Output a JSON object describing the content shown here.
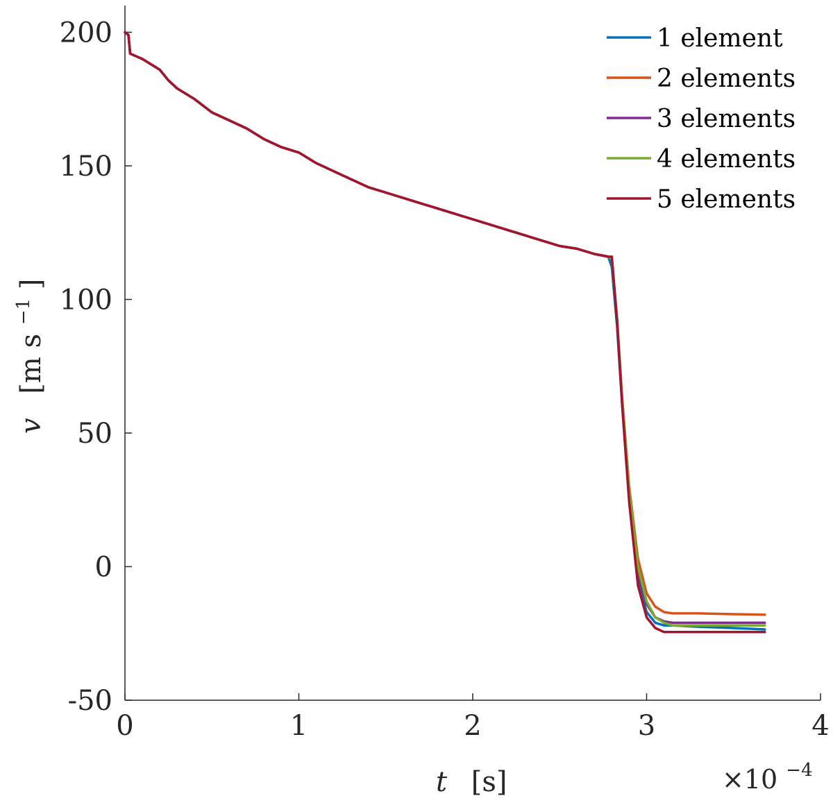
{
  "chart_data": {
    "type": "line",
    "xlabel": {
      "symbol": "t",
      "unit": "[s]"
    },
    "ylabel": {
      "symbol": "v",
      "unit_prefix": "[m s",
      "unit_exp": "−1",
      "unit_suffix": "]"
    },
    "x_multiplier": {
      "prefix": "×10",
      "exponent": "−4"
    },
    "xlim": [
      0,
      4
    ],
    "ylim": [
      -50,
      210
    ],
    "xticks": [
      0,
      1,
      2,
      3,
      4
    ],
    "xtick_labels": [
      "0",
      "1",
      "2",
      "3",
      "4"
    ],
    "yticks": [
      -50,
      0,
      50,
      100,
      150,
      200
    ],
    "ytick_labels": [
      "-50",
      "0",
      "50",
      "100",
      "150",
      "200"
    ],
    "grid": false,
    "legend_position": "top-right",
    "shared_curve": {
      "x": [
        0,
        0.02,
        0.03,
        0.1,
        0.2,
        0.25,
        0.3,
        0.4,
        0.5,
        0.6,
        0.7,
        0.8,
        0.9,
        1.0,
        1.1,
        1.2,
        1.3,
        1.4,
        1.5,
        1.6,
        1.7,
        1.8,
        1.9,
        2.0,
        2.1,
        2.2,
        2.3,
        2.4,
        2.5,
        2.6,
        2.7,
        2.78
      ],
      "y": [
        200,
        199,
        192,
        190,
        186,
        182,
        179,
        175,
        170,
        167,
        164,
        160,
        157,
        155,
        151,
        148,
        145,
        142,
        140,
        138,
        136,
        134,
        132,
        130,
        128,
        126,
        124,
        122,
        120,
        119,
        117,
        116
      ]
    },
    "series": [
      {
        "name": "1 element",
        "color": "#0072BD",
        "drop": {
          "x": [
            2.8,
            2.83,
            2.86,
            2.9,
            2.95,
            3.0,
            3.05,
            3.1,
            3.15,
            3.3,
            3.5,
            3.68
          ],
          "y": [
            112,
            90,
            60,
            25,
            -5,
            -17,
            -21,
            -22,
            -22,
            -22.5,
            -23,
            -23.5
          ]
        }
      },
      {
        "name": "2 elements",
        "color": "#D95319",
        "drop": {
          "x": [
            2.8,
            2.83,
            2.86,
            2.9,
            2.95,
            3.0,
            3.05,
            3.1,
            3.15,
            3.3,
            3.5,
            3.68
          ],
          "y": [
            115,
            93,
            63,
            30,
            3,
            -10,
            -15,
            -17,
            -17.5,
            -17.5,
            -17.8,
            -18
          ]
        }
      },
      {
        "name": "3 elements",
        "color": "#7E2F8E",
        "drop": {
          "x": [
            2.8,
            2.83,
            2.86,
            2.9,
            2.95,
            3.0,
            3.05,
            3.1,
            3.15,
            3.3,
            3.5,
            3.68
          ],
          "y": [
            115,
            92,
            61,
            27,
            -3,
            -14,
            -19,
            -20.5,
            -21,
            -21,
            -21,
            -21
          ]
        }
      },
      {
        "name": "4 elements",
        "color": "#77AC30",
        "drop": {
          "x": [
            2.8,
            2.83,
            2.86,
            2.9,
            2.95,
            3.0,
            3.05,
            3.1,
            3.15,
            3.3,
            3.5,
            3.68
          ],
          "y": [
            115,
            93,
            62,
            29,
            0,
            -13,
            -19,
            -21,
            -22,
            -22,
            -22,
            -22
          ]
        }
      },
      {
        "name": "5 elements",
        "color": "#A2142F",
        "drop": {
          "x": [
            2.8,
            2.83,
            2.86,
            2.9,
            2.95,
            3.0,
            3.05,
            3.1,
            3.15,
            3.3,
            3.5,
            3.68
          ],
          "y": [
            116,
            92,
            60,
            24,
            -7,
            -19,
            -23,
            -24.5,
            -24.5,
            -24.5,
            -24.5,
            -24.5
          ]
        }
      }
    ]
  }
}
